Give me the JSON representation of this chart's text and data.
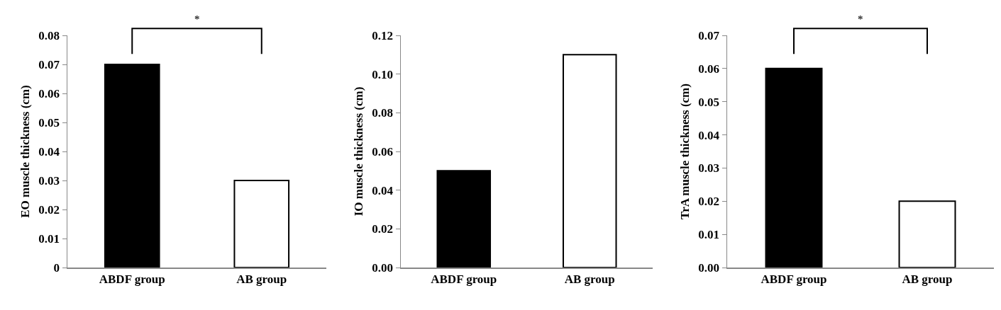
{
  "chart_data": [
    {
      "type": "bar",
      "ylabel": "EO muscle thickness (cm)",
      "categories": [
        "ABDF group",
        "AB group"
      ],
      "values": [
        0.07,
        0.03
      ],
      "colors": [
        "#000000",
        "#ffffff"
      ],
      "ylim": [
        0,
        0.08
      ],
      "yticks": [
        0,
        0.01,
        0.02,
        0.03,
        0.04,
        0.05,
        0.06,
        0.07,
        0.08
      ],
      "grid": false,
      "annotations": [
        "*"
      ]
    },
    {
      "type": "bar",
      "ylabel": "IO muscle thickness (cm)",
      "categories": [
        "ABDF group",
        "AB group"
      ],
      "values": [
        0.05,
        0.11
      ],
      "colors": [
        "#000000",
        "#ffffff"
      ],
      "ylim": [
        0,
        0.12
      ],
      "yticks": [
        {
          "value": 0,
          "label": "0.00"
        },
        {
          "value": 0.02,
          "label": "0.02"
        },
        {
          "value": 0.04,
          "label": "0.04"
        },
        {
          "value": 0.06,
          "label": "0.06"
        },
        {
          "value": 0.08,
          "label": "0.08"
        },
        {
          "value": 0.1,
          "label": "0.10"
        },
        {
          "value": 0.12,
          "label": "0.12"
        }
      ],
      "grid": false
    },
    {
      "type": "bar",
      "ylabel": "TrA muscle thickness (cm)",
      "categories": [
        "ABDF group",
        "AB group"
      ],
      "values": [
        0.06,
        0.02
      ],
      "colors": [
        "#000000",
        "#ffffff"
      ],
      "ylim": [
        0,
        0.07
      ],
      "yticks": [
        {
          "value": 0,
          "label": "0.00"
        },
        {
          "value": 0.01,
          "label": "0.01"
        },
        {
          "value": 0.02,
          "label": "0.02"
        },
        {
          "value": 0.03,
          "label": "0.03"
        },
        {
          "value": 0.04,
          "label": "0.04"
        },
        {
          "value": 0.05,
          "label": "0.05"
        },
        {
          "value": 0.06,
          "label": "0.06"
        },
        {
          "value": 0.07,
          "label": "0.07"
        }
      ],
      "grid": false,
      "annotations": [
        "*"
      ]
    }
  ]
}
